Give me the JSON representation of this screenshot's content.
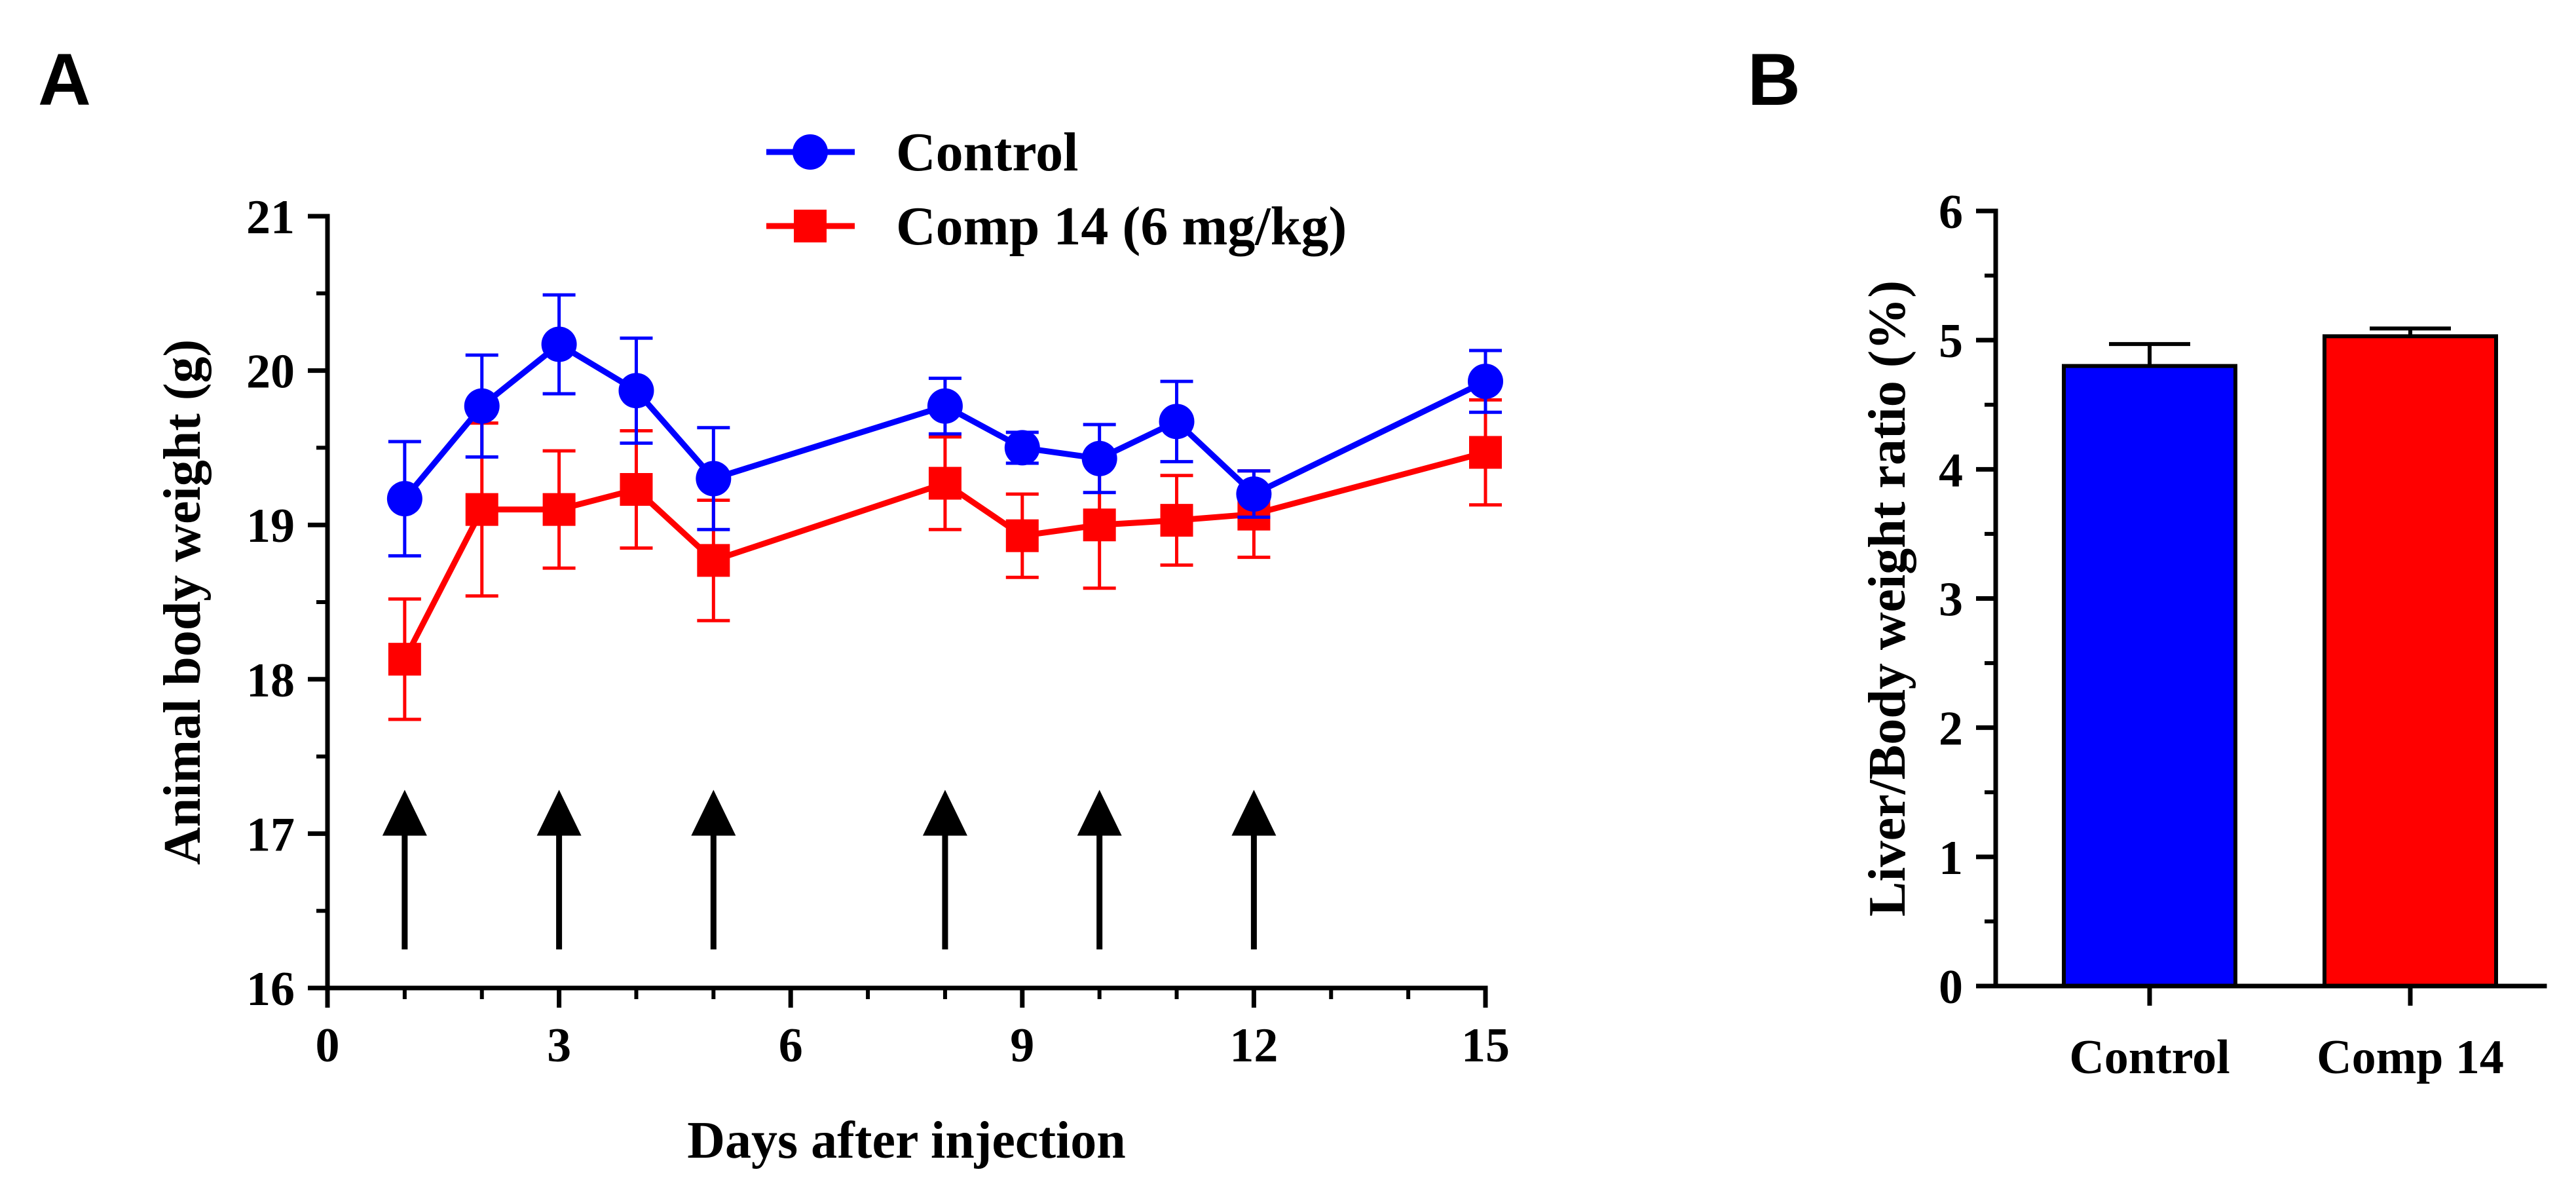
{
  "chart_data": [
    {
      "panel": "A",
      "type": "line",
      "title": "",
      "xlabel": "Days after injection",
      "ylabel": "Animal body weight (g)",
      "xlim": [
        0,
        15
      ],
      "ylim": [
        16,
        21
      ],
      "xticks": [
        0,
        3,
        6,
        9,
        12,
        15
      ],
      "yticks": [
        16,
        17,
        18,
        19,
        20,
        21
      ],
      "grid": false,
      "legend_position": "top-center",
      "series": [
        {
          "name": "Control",
          "color": "#0000ff",
          "marker": "circle",
          "x": [
            1,
            2,
            3,
            4,
            5,
            8,
            9,
            10,
            11,
            12,
            15
          ],
          "y": [
            19.17,
            19.77,
            20.17,
            19.87,
            19.3,
            19.77,
            19.5,
            19.43,
            19.67,
            19.2,
            19.93
          ],
          "error": [
            0.37,
            0.33,
            0.32,
            0.34,
            0.33,
            0.18,
            0.1,
            0.22,
            0.26,
            0.15,
            0.2
          ]
        },
        {
          "name": "Comp 14 (6 mg/kg)",
          "color": "#ff0000",
          "marker": "square",
          "x": [
            1,
            2,
            3,
            4,
            5,
            8,
            9,
            10,
            11,
            12,
            15
          ],
          "y": [
            18.13,
            19.1,
            19.1,
            19.23,
            18.77,
            19.27,
            18.93,
            19.0,
            19.03,
            19.07,
            19.47
          ],
          "error": [
            0.39,
            0.56,
            0.38,
            0.38,
            0.39,
            0.3,
            0.27,
            0.41,
            0.29,
            0.28,
            0.34
          ]
        }
      ],
      "annotations": {
        "injection_arrow_days": [
          1,
          3,
          5,
          8,
          10,
          12
        ],
        "arrow_from_y": 16.25,
        "arrow_to_y": 17.25
      }
    },
    {
      "panel": "B",
      "type": "bar",
      "title": "",
      "xlabel": "",
      "ylabel": "Liver/Body weight ratio (%)",
      "ylim": [
        0,
        6
      ],
      "yticks": [
        0,
        1,
        2,
        3,
        4,
        5,
        6
      ],
      "grid": false,
      "categories": [
        "Control",
        "Comp 14"
      ],
      "values": [
        4.8,
        5.03
      ],
      "errors": [
        0.17,
        0.06
      ],
      "colors": [
        "#0000ff",
        "#ff0000"
      ]
    }
  ]
}
